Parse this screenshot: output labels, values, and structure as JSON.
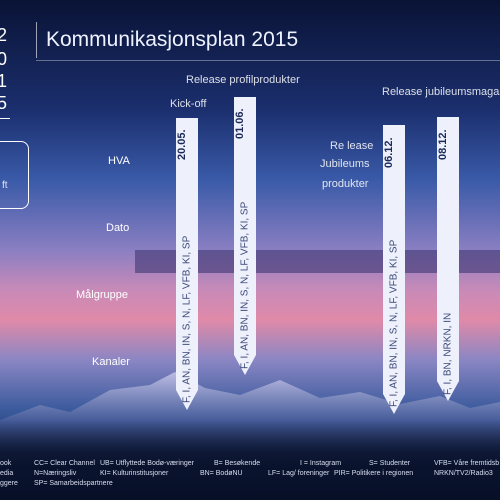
{
  "title": "Kommunikasjonsplan 2015",
  "logo": {
    "digits": [
      "2",
      "0",
      "1",
      "5"
    ],
    "side_text": "ft"
  },
  "rows": {
    "hva": "HVA",
    "dato": "Dato",
    "malgruppe": "Målgruppe",
    "kanaler": "Kanaler"
  },
  "annotations": {
    "kickoff": "Kick-off",
    "release_profil": "Release profilprodukter",
    "re_lease": "Re lease",
    "jubileums": "Jubileums",
    "produkter": "produkter",
    "release_jubileum": "Release jubileumsmagas"
  },
  "arrows": [
    {
      "date": "20.05.",
      "tags": "F, I, AN, BN, IN, S, N, LF, VFB, KI, SP"
    },
    {
      "date": "01.06.",
      "tags": "F, I, AN, BN, IN, S, N, LF, VFB, KI, SP"
    },
    {
      "date": "06.12.",
      "tags": "F, I, AN, BN, IN, S, N, LF, VFB, KI, SP"
    },
    {
      "date": "08.12.",
      "tags": "F, I, BN, NRKN, IN"
    }
  ],
  "legend": {
    "row1": [
      "ook",
      "CC= Clear Channel",
      "UB= Utflyttede Bodø-væringer",
      "B= Besøkende",
      "I = Instagram",
      "S= Studenter",
      "VFB= Våre fremtidsb"
    ],
    "row2": [
      "edia",
      "N=Næringsliv",
      "KI= Kulturinstitusjoner",
      "BN= BodøNU",
      "LF= Lag/ foreninger",
      "PIR= Politikere i regionen",
      "NRKN/TV2/Radio3"
    ],
    "row3": [
      "ggere",
      "SP= Samarbeidspartnere"
    ]
  },
  "colors": {
    "arrow_fill": "#eef1fb",
    "date_text": "#1b2a5a",
    "band": "#463c78"
  }
}
